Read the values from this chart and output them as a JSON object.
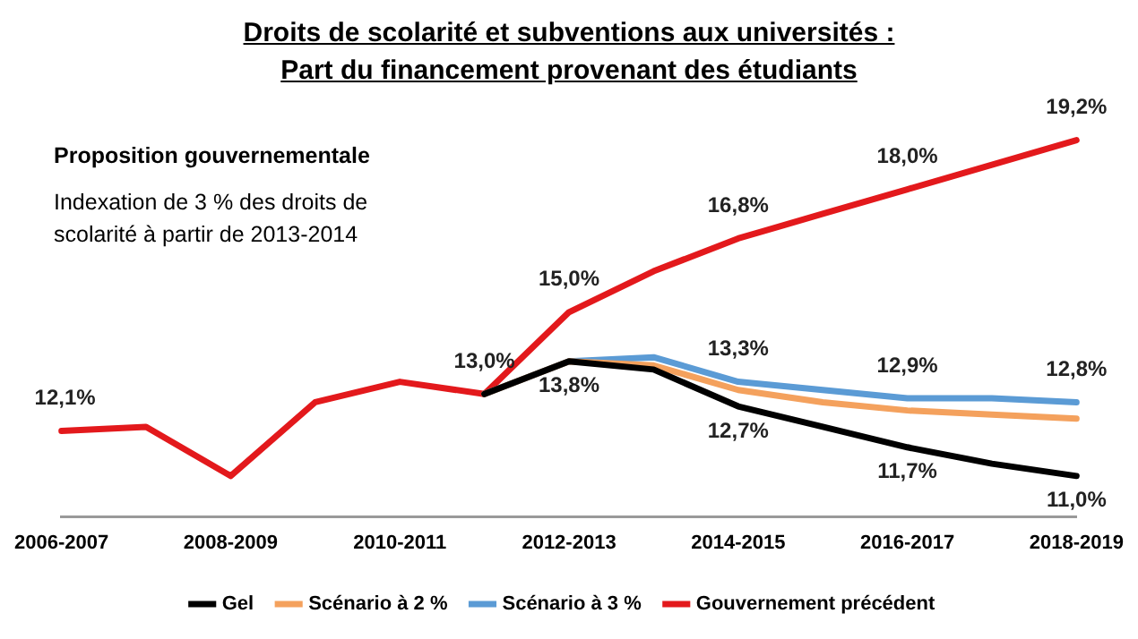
{
  "chart_data": {
    "type": "line",
    "title": "Droits de scolarité et subventions aux universités :\nPart du financement provenant des étudiants",
    "annotations": [
      "Proposition gouvernementale",
      "Indexation de 3 % des droits de\nscolarité à partir de 2013-2014"
    ],
    "categories": [
      "2006-2007",
      null,
      "2008-2009",
      null,
      "2010-2011",
      null,
      "2012-2013",
      null,
      "2014-2015",
      null,
      "2016-2017",
      null,
      "2018-2019"
    ],
    "series": [
      {
        "name": "Gel",
        "color": "#000000",
        "values": [
          null,
          null,
          null,
          null,
          null,
          13.0,
          13.8,
          13.6,
          12.7,
          12.2,
          11.7,
          11.3,
          11.0
        ],
        "value_labels": [
          null,
          null,
          null,
          null,
          null,
          null,
          "13,8%",
          null,
          "12,7%",
          null,
          "11,7%",
          null,
          "11,0%"
        ]
      },
      {
        "name": "Scénario à 2 %",
        "color": "#f4a15d",
        "values": [
          null,
          null,
          null,
          null,
          null,
          13.0,
          13.8,
          13.7,
          13.1,
          12.8,
          12.6,
          12.5,
          12.4
        ]
      },
      {
        "name": "Scénario à 3 %",
        "color": "#5b9bd5",
        "values": [
          null,
          null,
          null,
          null,
          null,
          13.0,
          13.8,
          13.9,
          13.3,
          13.1,
          12.9,
          12.9,
          12.8
        ],
        "value_labels": [
          null,
          null,
          null,
          null,
          null,
          null,
          null,
          null,
          "13,3%",
          null,
          "12,9%",
          null,
          "12,8%"
        ]
      },
      {
        "name": "Gouvernement précédent",
        "color": "#e3191c",
        "values": [
          12.1,
          12.2,
          11.0,
          12.8,
          13.3,
          13.0,
          15.0,
          16.0,
          16.8,
          17.4,
          18.0,
          18.6,
          19.2
        ],
        "value_labels": [
          "12,1%",
          null,
          null,
          null,
          null,
          "13,0%",
          "15,0%",
          null,
          "16,8%",
          null,
          "18,0%",
          null,
          "19,2%"
        ]
      }
    ],
    "legend": "bottom",
    "grid": false,
    "marker": "none",
    "line_style": "solid",
    "tick_labels": "x"
  }
}
